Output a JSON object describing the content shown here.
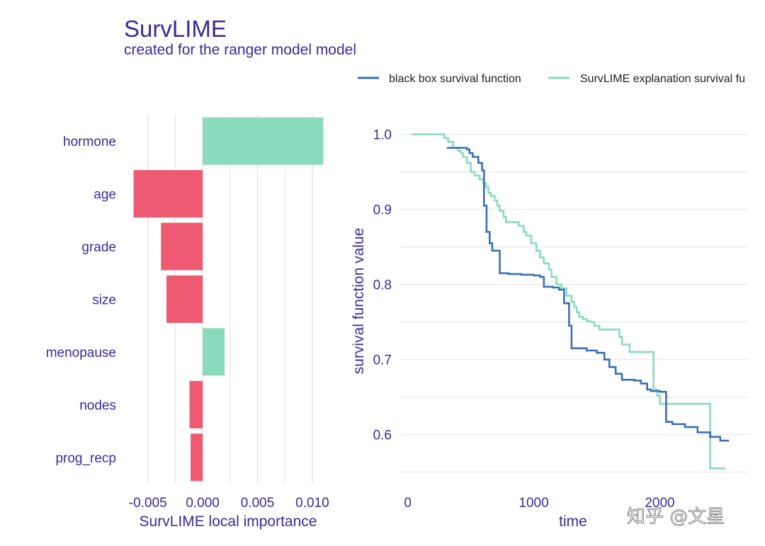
{
  "header": {
    "title": "SurvLIME",
    "subtitle": "created for the ranger model model"
  },
  "legend": {
    "placement": "top-right",
    "items": [
      {
        "label": "black box survival function",
        "color": "#3a6fb5"
      },
      {
        "label": "SurvLIME explanation survival fu",
        "color": "#8adbbd"
      }
    ]
  },
  "watermark": "知乎 @文星",
  "colors": {
    "positive": "#8adbbd",
    "negative": "#ee5a72",
    "blackbox": "#3a6fb5",
    "explanation": "#8adbbd",
    "text": "#3b2a9a",
    "grid": "#e2e2e2"
  },
  "chart_data": [
    {
      "type": "bar",
      "orientation": "horizontal",
      "categories": [
        "hormone",
        "age",
        "grade",
        "size",
        "menopause",
        "nodes",
        "prog_recp"
      ],
      "values": [
        0.011,
        -0.0063,
        -0.0038,
        -0.0033,
        0.002,
        -0.0012,
        -0.0011
      ],
      "xlabel": "SurvLIME local importance",
      "ylabel": "",
      "xlim": [
        -0.0075,
        0.0122
      ],
      "xticks": [
        -0.005,
        0.0,
        0.005,
        0.01
      ],
      "xtick_labels": [
        "-0.005",
        "0.000",
        "0.005",
        "0.010"
      ],
      "grid": true
    },
    {
      "type": "line",
      "step": true,
      "xlabel": "time",
      "ylabel": "survival function value",
      "xlim": [
        -60,
        2700
      ],
      "ylim": [
        0.545,
        1.012
      ],
      "xticks": [
        0,
        1000,
        2000
      ],
      "xtick_labels": [
        "0",
        "1000",
        "2000"
      ],
      "yticks": [
        0.6,
        0.7,
        0.8,
        0.9,
        1.0
      ],
      "ytick_labels": [
        "0.6",
        "0.7",
        "0.8",
        "0.9",
        "1.0"
      ],
      "grid": true,
      "series": [
        {
          "name": "black box survival function",
          "x": [
            310,
            440,
            470,
            490,
            515,
            560,
            590,
            605,
            625,
            650,
            670,
            700,
            730,
            800,
            900,
            1000,
            1050,
            1080,
            1150,
            1200,
            1240,
            1280,
            1300,
            1350,
            1420,
            1500,
            1560,
            1600,
            1650,
            1700,
            1800,
            1850,
            1900,
            1930,
            2000,
            2050,
            2100,
            2200,
            2300,
            2400,
            2480,
            2550
          ],
          "y": [
            0.982,
            0.982,
            0.98,
            0.975,
            0.97,
            0.962,
            0.952,
            0.905,
            0.87,
            0.855,
            0.845,
            0.845,
            0.815,
            0.814,
            0.813,
            0.812,
            0.81,
            0.797,
            0.796,
            0.793,
            0.775,
            0.745,
            0.715,
            0.715,
            0.712,
            0.709,
            0.7,
            0.69,
            0.681,
            0.673,
            0.672,
            0.668,
            0.66,
            0.658,
            0.657,
            0.617,
            0.614,
            0.61,
            0.603,
            0.597,
            0.592,
            0.592
          ]
        },
        {
          "name": "SurvLIME explanation survival fu",
          "x": [
            30,
            250,
            290,
            320,
            360,
            400,
            420,
            440,
            470,
            500,
            530,
            570,
            600,
            620,
            640,
            660,
            690,
            710,
            730,
            760,
            780,
            800,
            850,
            880,
            920,
            940,
            980,
            1020,
            1050,
            1080,
            1120,
            1140,
            1180,
            1220,
            1260,
            1300,
            1320,
            1340,
            1360,
            1390,
            1420,
            1450,
            1480,
            1520,
            1560,
            1600,
            1680,
            1700,
            1760,
            1800,
            1850,
            1950,
            1980,
            2000,
            2040,
            2400,
            2440,
            2520
          ],
          "y": [
            1.0,
            1.0,
            0.995,
            0.99,
            0.982,
            0.978,
            0.975,
            0.97,
            0.962,
            0.95,
            0.945,
            0.94,
            0.935,
            0.93,
            0.922,
            0.918,
            0.912,
            0.905,
            0.898,
            0.89,
            0.883,
            0.883,
            0.883,
            0.878,
            0.87,
            0.865,
            0.855,
            0.845,
            0.836,
            0.828,
            0.82,
            0.81,
            0.8,
            0.795,
            0.785,
            0.777,
            0.77,
            0.763,
            0.757,
            0.754,
            0.751,
            0.75,
            0.745,
            0.74,
            0.74,
            0.74,
            0.73,
            0.72,
            0.71,
            0.71,
            0.71,
            0.66,
            0.652,
            0.641,
            0.641,
            0.555,
            0.555,
            0.555
          ]
        }
      ]
    }
  ]
}
